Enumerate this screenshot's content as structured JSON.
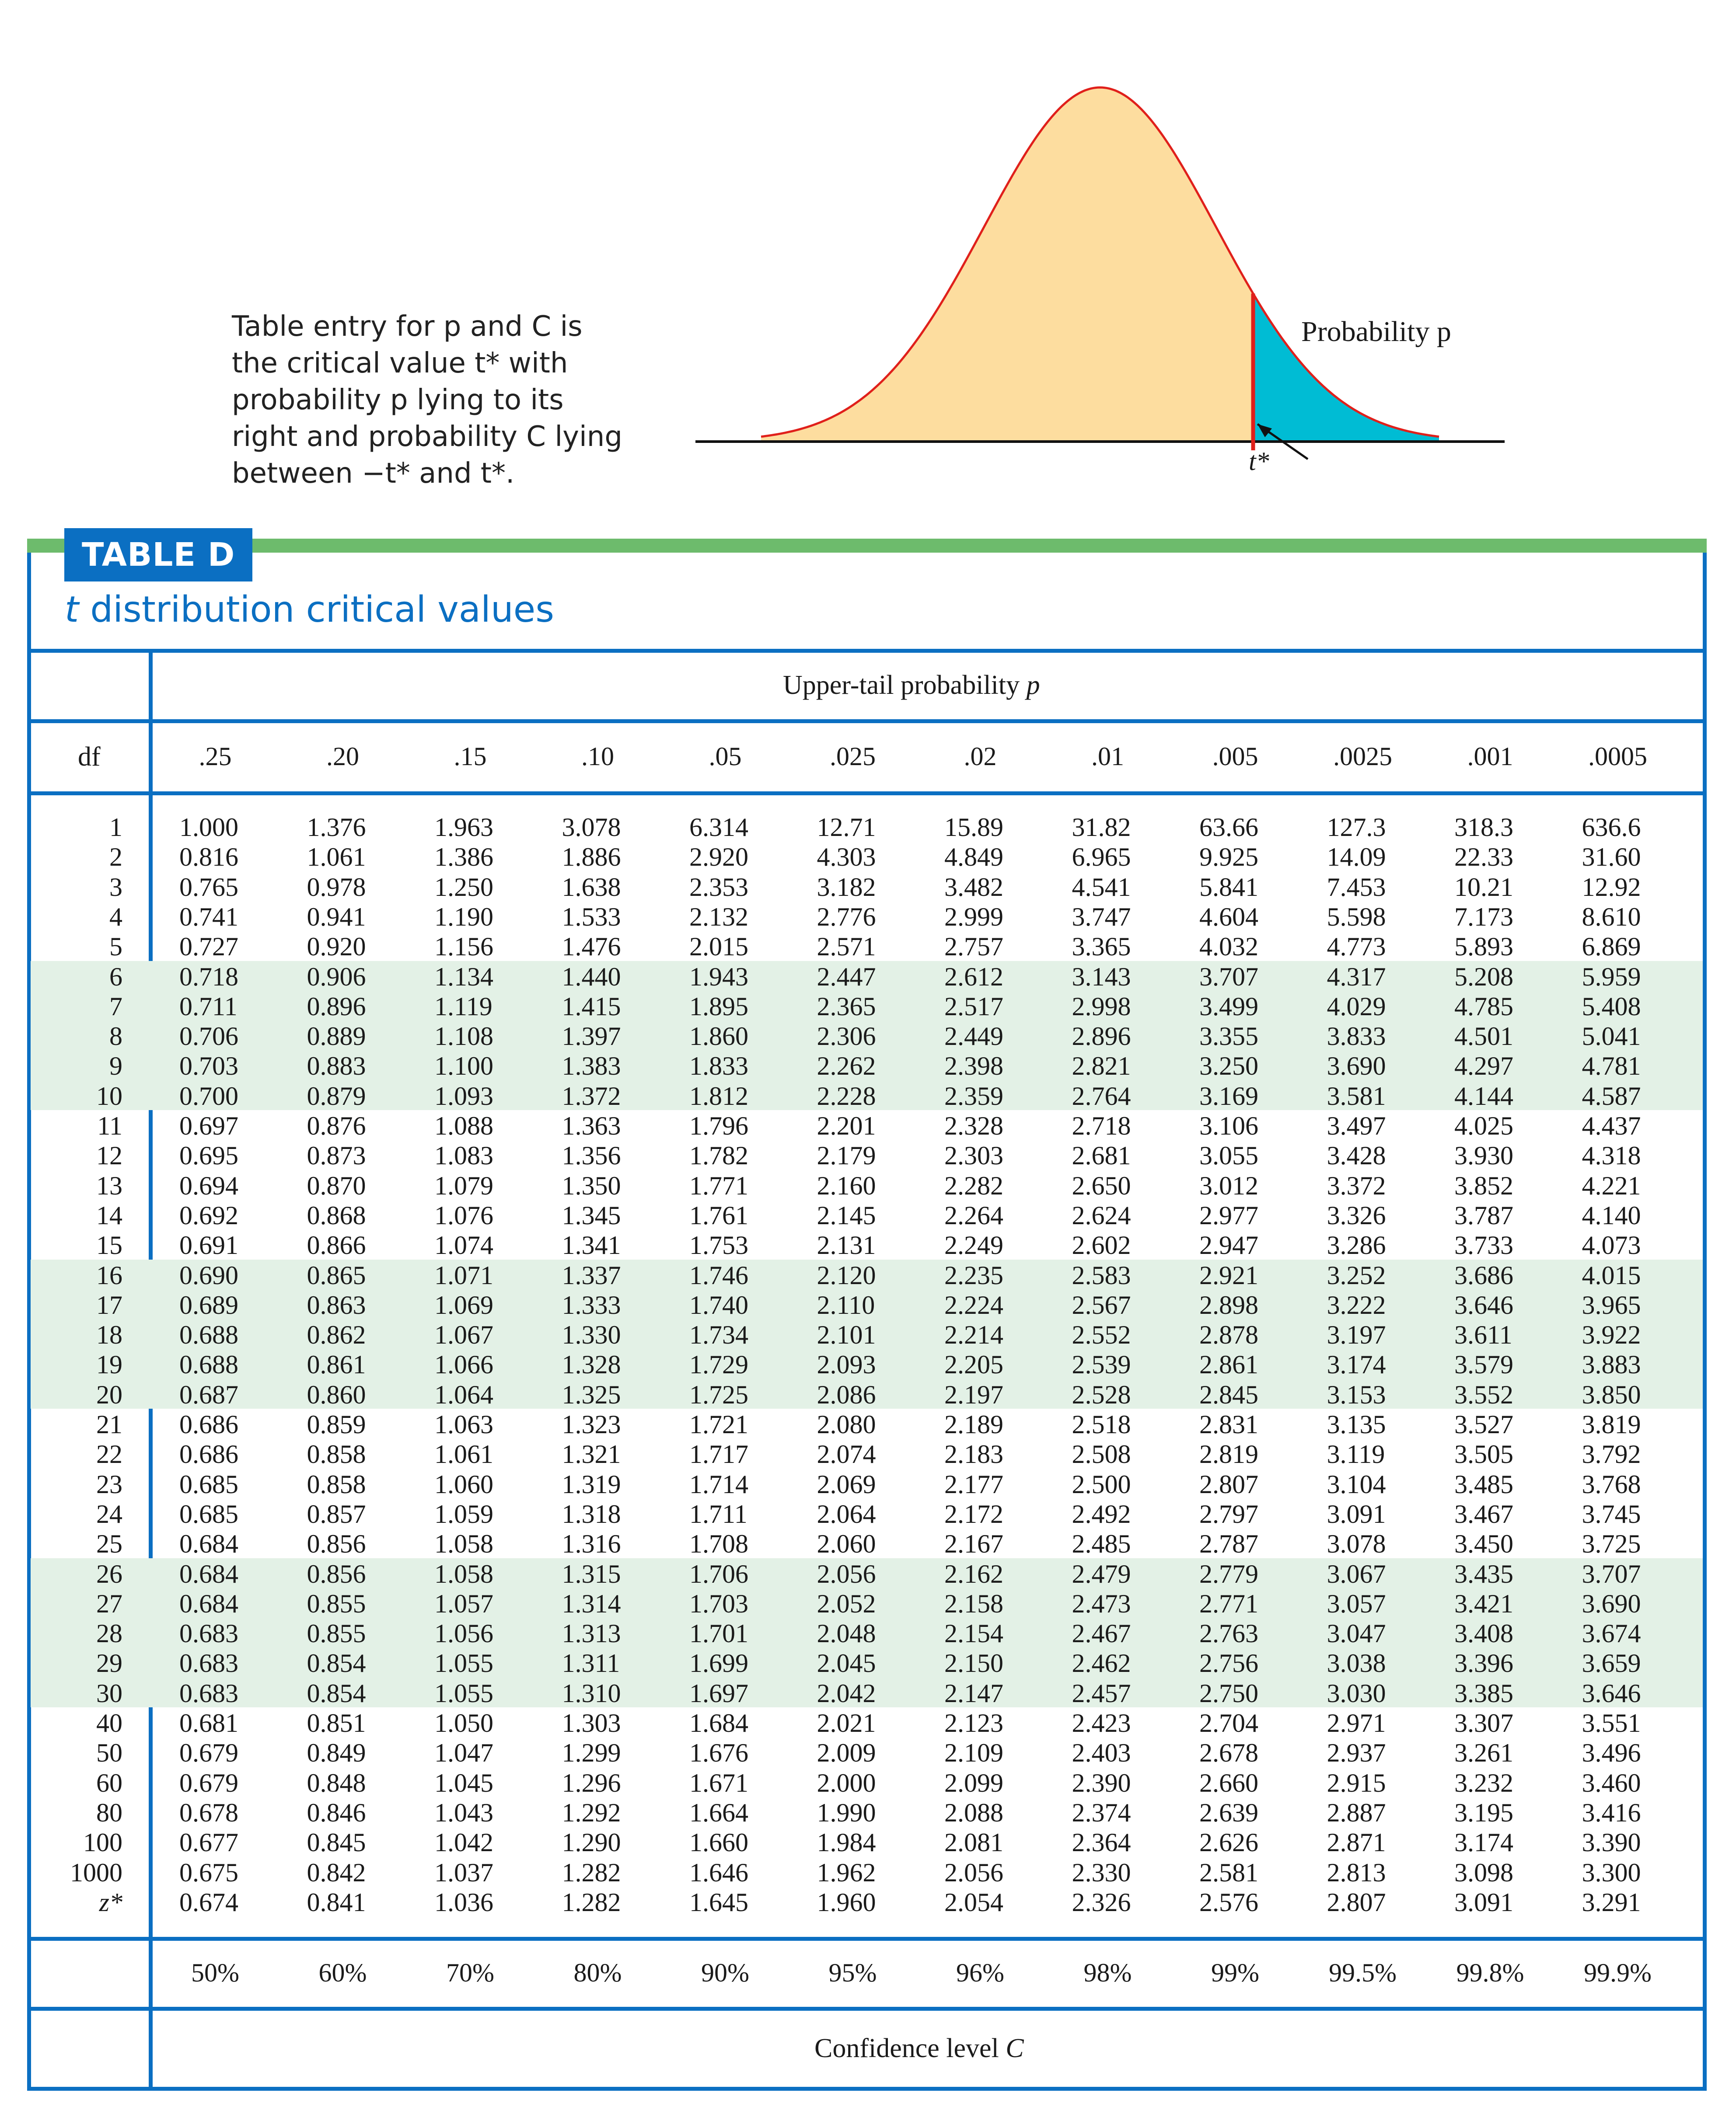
{
  "intro_lines": [
    "Table entry for p and C is",
    "the critical value t* with",
    "probability p lying to its",
    "right and probability C lying",
    "between −t* and t*."
  ],
  "figure": {
    "probability_label": "Probability p",
    "tstar_label": "t*",
    "fill_color": "#fddd9f",
    "tail_color": "#00bcd4",
    "curve_color": "#e0201b"
  },
  "table": {
    "tag": "TABLE D",
    "title_t": "t",
    "title_rest": " distribution critical values",
    "upper_tail_label": "Upper-tail probability",
    "upper_tail_var": "p",
    "df_header": "df",
    "p_headers": [
      ".25",
      ".20",
      ".15",
      ".10",
      ".05",
      ".025",
      ".02",
      ".01",
      ".005",
      ".0025",
      ".001",
      ".0005"
    ],
    "confidence_levels": [
      "50%",
      "60%",
      "70%",
      "80%",
      "90%",
      "95%",
      "96%",
      "98%",
      "99%",
      "99.5%",
      "99.8%",
      "99.9%"
    ],
    "confidence_label": "Confidence level",
    "confidence_var": "C",
    "accent_color": "#0b6fc2",
    "band_color": "#e3f1e6",
    "rows": [
      {
        "df": "1",
        "v": [
          "1.000",
          "1.376",
          "1.963",
          "3.078",
          "6.314",
          "12.71",
          "15.89",
          "31.82",
          "63.66",
          "127.3",
          "318.3",
          "636.6"
        ]
      },
      {
        "df": "2",
        "v": [
          "0.816",
          "1.061",
          "1.386",
          "1.886",
          "2.920",
          "4.303",
          "4.849",
          "6.965",
          "9.925",
          "14.09",
          "22.33",
          "31.60"
        ]
      },
      {
        "df": "3",
        "v": [
          "0.765",
          "0.978",
          "1.250",
          "1.638",
          "2.353",
          "3.182",
          "3.482",
          "4.541",
          "5.841",
          "7.453",
          "10.21",
          "12.92"
        ]
      },
      {
        "df": "4",
        "v": [
          "0.741",
          "0.941",
          "1.190",
          "1.533",
          "2.132",
          "2.776",
          "2.999",
          "3.747",
          "4.604",
          "5.598",
          "7.173",
          "8.610"
        ]
      },
      {
        "df": "5",
        "v": [
          "0.727",
          "0.920",
          "1.156",
          "1.476",
          "2.015",
          "2.571",
          "2.757",
          "3.365",
          "4.032",
          "4.773",
          "5.893",
          "6.869"
        ]
      },
      {
        "df": "6",
        "v": [
          "0.718",
          "0.906",
          "1.134",
          "1.440",
          "1.943",
          "2.447",
          "2.612",
          "3.143",
          "3.707",
          "4.317",
          "5.208",
          "5.959"
        ]
      },
      {
        "df": "7",
        "v": [
          "0.711",
          "0.896",
          "1.119",
          "1.415",
          "1.895",
          "2.365",
          "2.517",
          "2.998",
          "3.499",
          "4.029",
          "4.785",
          "5.408"
        ]
      },
      {
        "df": "8",
        "v": [
          "0.706",
          "0.889",
          "1.108",
          "1.397",
          "1.860",
          "2.306",
          "2.449",
          "2.896",
          "3.355",
          "3.833",
          "4.501",
          "5.041"
        ]
      },
      {
        "df": "9",
        "v": [
          "0.703",
          "0.883",
          "1.100",
          "1.383",
          "1.833",
          "2.262",
          "2.398",
          "2.821",
          "3.250",
          "3.690",
          "4.297",
          "4.781"
        ]
      },
      {
        "df": "10",
        "v": [
          "0.700",
          "0.879",
          "1.093",
          "1.372",
          "1.812",
          "2.228",
          "2.359",
          "2.764",
          "3.169",
          "3.581",
          "4.144",
          "4.587"
        ]
      },
      {
        "df": "11",
        "v": [
          "0.697",
          "0.876",
          "1.088",
          "1.363",
          "1.796",
          "2.201",
          "2.328",
          "2.718",
          "3.106",
          "3.497",
          "4.025",
          "4.437"
        ]
      },
      {
        "df": "12",
        "v": [
          "0.695",
          "0.873",
          "1.083",
          "1.356",
          "1.782",
          "2.179",
          "2.303",
          "2.681",
          "3.055",
          "3.428",
          "3.930",
          "4.318"
        ]
      },
      {
        "df": "13",
        "v": [
          "0.694",
          "0.870",
          "1.079",
          "1.350",
          "1.771",
          "2.160",
          "2.282",
          "2.650",
          "3.012",
          "3.372",
          "3.852",
          "4.221"
        ]
      },
      {
        "df": "14",
        "v": [
          "0.692",
          "0.868",
          "1.076",
          "1.345",
          "1.761",
          "2.145",
          "2.264",
          "2.624",
          "2.977",
          "3.326",
          "3.787",
          "4.140"
        ]
      },
      {
        "df": "15",
        "v": [
          "0.691",
          "0.866",
          "1.074",
          "1.341",
          "1.753",
          "2.131",
          "2.249",
          "2.602",
          "2.947",
          "3.286",
          "3.733",
          "4.073"
        ]
      },
      {
        "df": "16",
        "v": [
          "0.690",
          "0.865",
          "1.071",
          "1.337",
          "1.746",
          "2.120",
          "2.235",
          "2.583",
          "2.921",
          "3.252",
          "3.686",
          "4.015"
        ]
      },
      {
        "df": "17",
        "v": [
          "0.689",
          "0.863",
          "1.069",
          "1.333",
          "1.740",
          "2.110",
          "2.224",
          "2.567",
          "2.898",
          "3.222",
          "3.646",
          "3.965"
        ]
      },
      {
        "df": "18",
        "v": [
          "0.688",
          "0.862",
          "1.067",
          "1.330",
          "1.734",
          "2.101",
          "2.214",
          "2.552",
          "2.878",
          "3.197",
          "3.611",
          "3.922"
        ]
      },
      {
        "df": "19",
        "v": [
          "0.688",
          "0.861",
          "1.066",
          "1.328",
          "1.729",
          "2.093",
          "2.205",
          "2.539",
          "2.861",
          "3.174",
          "3.579",
          "3.883"
        ]
      },
      {
        "df": "20",
        "v": [
          "0.687",
          "0.860",
          "1.064",
          "1.325",
          "1.725",
          "2.086",
          "2.197",
          "2.528",
          "2.845",
          "3.153",
          "3.552",
          "3.850"
        ]
      },
      {
        "df": "21",
        "v": [
          "0.686",
          "0.859",
          "1.063",
          "1.323",
          "1.721",
          "2.080",
          "2.189",
          "2.518",
          "2.831",
          "3.135",
          "3.527",
          "3.819"
        ]
      },
      {
        "df": "22",
        "v": [
          "0.686",
          "0.858",
          "1.061",
          "1.321",
          "1.717",
          "2.074",
          "2.183",
          "2.508",
          "2.819",
          "3.119",
          "3.505",
          "3.792"
        ]
      },
      {
        "df": "23",
        "v": [
          "0.685",
          "0.858",
          "1.060",
          "1.319",
          "1.714",
          "2.069",
          "2.177",
          "2.500",
          "2.807",
          "3.104",
          "3.485",
          "3.768"
        ]
      },
      {
        "df": "24",
        "v": [
          "0.685",
          "0.857",
          "1.059",
          "1.318",
          "1.711",
          "2.064",
          "2.172",
          "2.492",
          "2.797",
          "3.091",
          "3.467",
          "3.745"
        ]
      },
      {
        "df": "25",
        "v": [
          "0.684",
          "0.856",
          "1.058",
          "1.316",
          "1.708",
          "2.060",
          "2.167",
          "2.485",
          "2.787",
          "3.078",
          "3.450",
          "3.725"
        ]
      },
      {
        "df": "26",
        "v": [
          "0.684",
          "0.856",
          "1.058",
          "1.315",
          "1.706",
          "2.056",
          "2.162",
          "2.479",
          "2.779",
          "3.067",
          "3.435",
          "3.707"
        ]
      },
      {
        "df": "27",
        "v": [
          "0.684",
          "0.855",
          "1.057",
          "1.314",
          "1.703",
          "2.052",
          "2.158",
          "2.473",
          "2.771",
          "3.057",
          "3.421",
          "3.690"
        ]
      },
      {
        "df": "28",
        "v": [
          "0.683",
          "0.855",
          "1.056",
          "1.313",
          "1.701",
          "2.048",
          "2.154",
          "2.467",
          "2.763",
          "3.047",
          "3.408",
          "3.674"
        ]
      },
      {
        "df": "29",
        "v": [
          "0.683",
          "0.854",
          "1.055",
          "1.311",
          "1.699",
          "2.045",
          "2.150",
          "2.462",
          "2.756",
          "3.038",
          "3.396",
          "3.659"
        ]
      },
      {
        "df": "30",
        "v": [
          "0.683",
          "0.854",
          "1.055",
          "1.310",
          "1.697",
          "2.042",
          "2.147",
          "2.457",
          "2.750",
          "3.030",
          "3.385",
          "3.646"
        ]
      },
      {
        "df": "40",
        "v": [
          "0.681",
          "0.851",
          "1.050",
          "1.303",
          "1.684",
          "2.021",
          "2.123",
          "2.423",
          "2.704",
          "2.971",
          "3.307",
          "3.551"
        ]
      },
      {
        "df": "50",
        "v": [
          "0.679",
          "0.849",
          "1.047",
          "1.299",
          "1.676",
          "2.009",
          "2.109",
          "2.403",
          "2.678",
          "2.937",
          "3.261",
          "3.496"
        ]
      },
      {
        "df": "60",
        "v": [
          "0.679",
          "0.848",
          "1.045",
          "1.296",
          "1.671",
          "2.000",
          "2.099",
          "2.390",
          "2.660",
          "2.915",
          "3.232",
          "3.460"
        ]
      },
      {
        "df": "80",
        "v": [
          "0.678",
          "0.846",
          "1.043",
          "1.292",
          "1.664",
          "1.990",
          "2.088",
          "2.374",
          "2.639",
          "2.887",
          "3.195",
          "3.416"
        ]
      },
      {
        "df": "100",
        "v": [
          "0.677",
          "0.845",
          "1.042",
          "1.290",
          "1.660",
          "1.984",
          "2.081",
          "2.364",
          "2.626",
          "2.871",
          "3.174",
          "3.390"
        ]
      },
      {
        "df": "1000",
        "v": [
          "0.675",
          "0.842",
          "1.037",
          "1.282",
          "1.646",
          "1.962",
          "2.056",
          "2.330",
          "2.581",
          "2.813",
          "3.098",
          "3.300"
        ]
      },
      {
        "df": "z*",
        "v": [
          "0.674",
          "0.841",
          "1.036",
          "1.282",
          "1.645",
          "1.960",
          "2.054",
          "2.326",
          "2.576",
          "2.807",
          "3.091",
          "3.291"
        ]
      }
    ]
  }
}
